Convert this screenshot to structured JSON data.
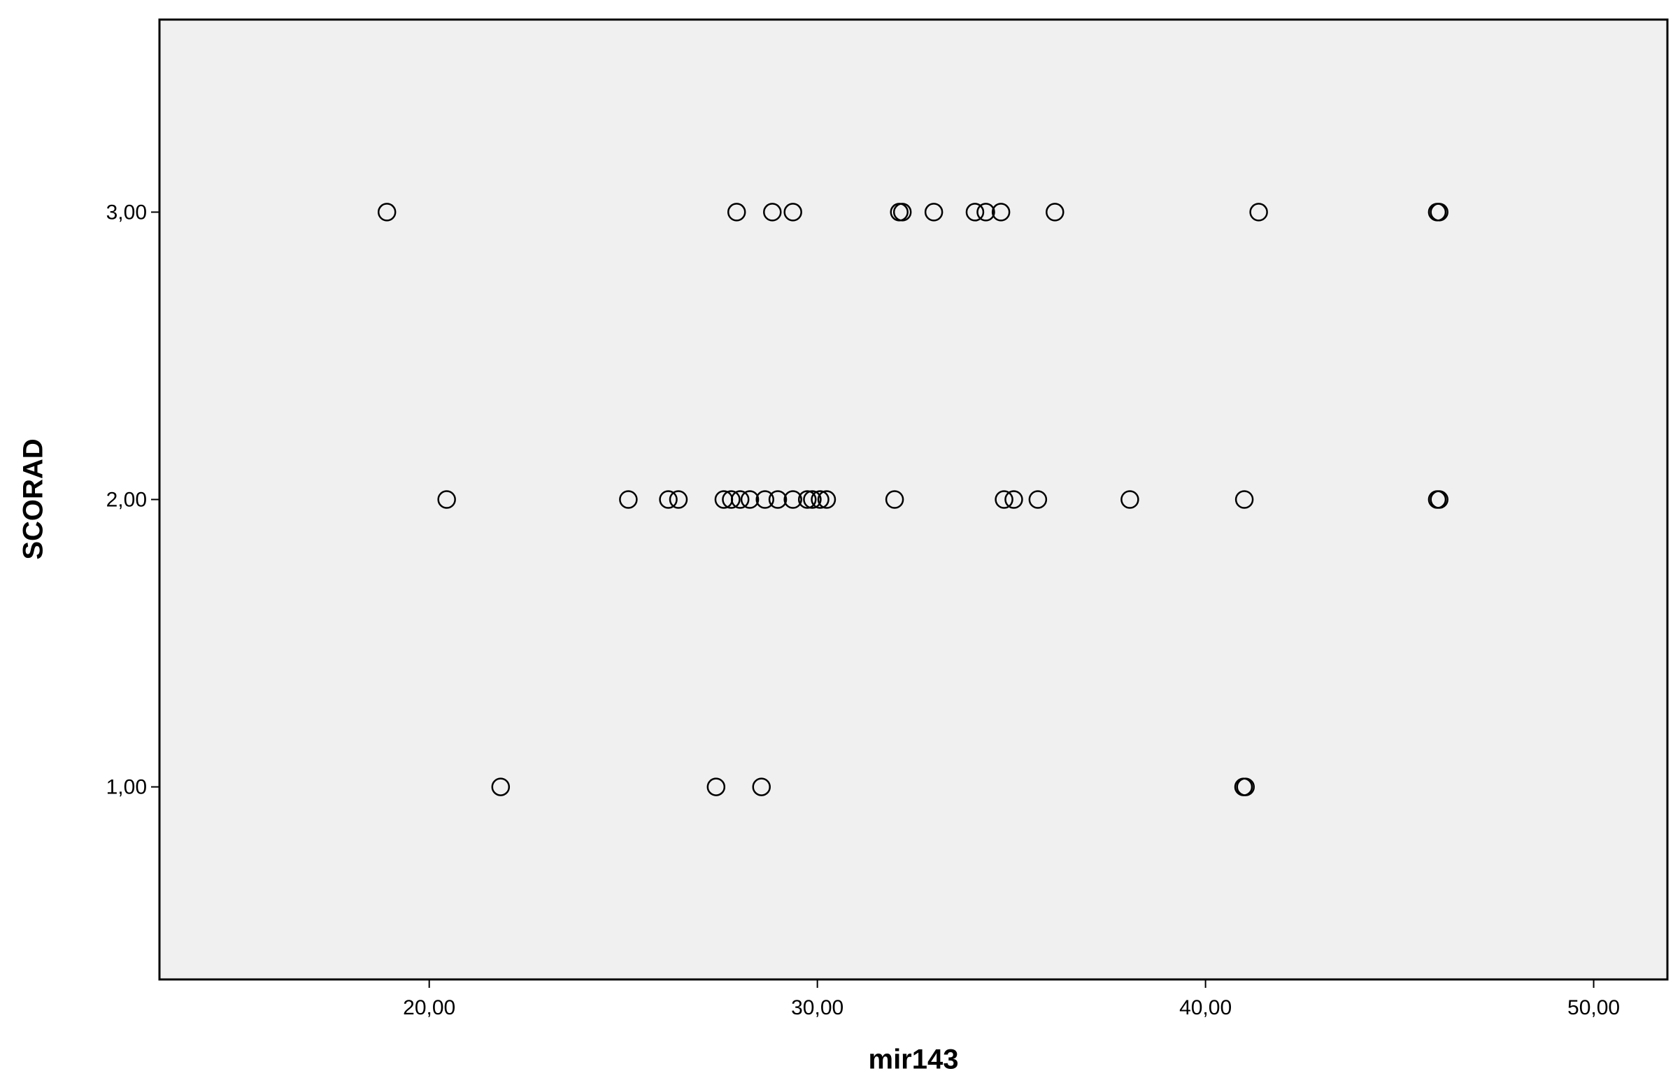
{
  "chart_data": {
    "type": "scatter",
    "x_label": "mir143",
    "y_label": "SCORAD",
    "x": [
      18.91,
      27.92,
      28.84,
      29.37,
      32.11,
      32.19,
      33.0,
      34.06,
      34.34,
      34.73,
      36.12,
      41.37,
      45.97,
      46.02,
      20.45,
      25.13,
      26.16,
      26.42,
      27.59,
      27.78,
      28.01,
      28.26,
      28.65,
      28.98,
      29.37,
      29.74,
      29.87,
      30.07,
      30.24,
      31.99,
      34.81,
      35.06,
      35.68,
      38.05,
      41.0,
      45.97,
      46.02,
      21.84,
      27.39,
      28.56,
      40.98,
      41.03
    ],
    "values": [
      3,
      3,
      3,
      3,
      3,
      3,
      3,
      3,
      3,
      3,
      3,
      3,
      3,
      3,
      2,
      2,
      2,
      2,
      2,
      2,
      2,
      2,
      2,
      2,
      2,
      2,
      2,
      2,
      2,
      2,
      2,
      2,
      2,
      2,
      2,
      2,
      2,
      1,
      1,
      1,
      1,
      1
    ],
    "color": "#000000",
    "xlim": [
      13.05,
      51.9
    ],
    "ylim": [
      0.33,
      3.67
    ],
    "xticks": [
      {
        "value": 20,
        "label": "20,00"
      },
      {
        "value": 30,
        "label": "30,00"
      },
      {
        "value": 40,
        "label": "40,00"
      },
      {
        "value": 50,
        "label": "50,00"
      }
    ],
    "yticks": [
      {
        "value": 1,
        "label": "1,00"
      },
      {
        "value": 2,
        "label": "2,00"
      },
      {
        "value": 3,
        "label": "3,00"
      }
    ],
    "grid": false
  }
}
